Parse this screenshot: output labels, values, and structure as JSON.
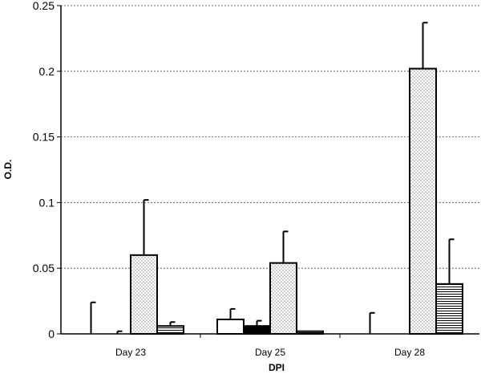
{
  "chart_data": {
    "type": "bar",
    "title": "",
    "xlabel": "DPI",
    "ylabel": "O.D.",
    "ylim": [
      0,
      0.25
    ],
    "yticks": [
      "0",
      "0.05",
      "0.1",
      "0.15",
      "0.2",
      "0.25"
    ],
    "categories": [
      "Day 23",
      "Day 25",
      "Day 28"
    ],
    "grid": "horizontal dashed",
    "series": [
      {
        "values": [
          0.0,
          0.011,
          0.0
        ],
        "errors": [
          0.024,
          0.008,
          0.016
        ],
        "pattern": "white",
        "color": "#ffffff"
      },
      {
        "values": [
          0.0,
          0.006,
          0.0
        ],
        "errors": [
          0.002,
          0.004,
          0.0
        ],
        "pattern": "black",
        "color": "#000000"
      },
      {
        "values": [
          0.06,
          0.054,
          0.202
        ],
        "errors": [
          0.042,
          0.024,
          0.035
        ],
        "pattern": "dots",
        "color": "#ffffff"
      },
      {
        "values": [
          0.006,
          0.002,
          0.038
        ],
        "errors": [
          0.003,
          0.0,
          0.034
        ],
        "pattern": "horizontal-lines",
        "color": "#ffffff"
      }
    ]
  }
}
